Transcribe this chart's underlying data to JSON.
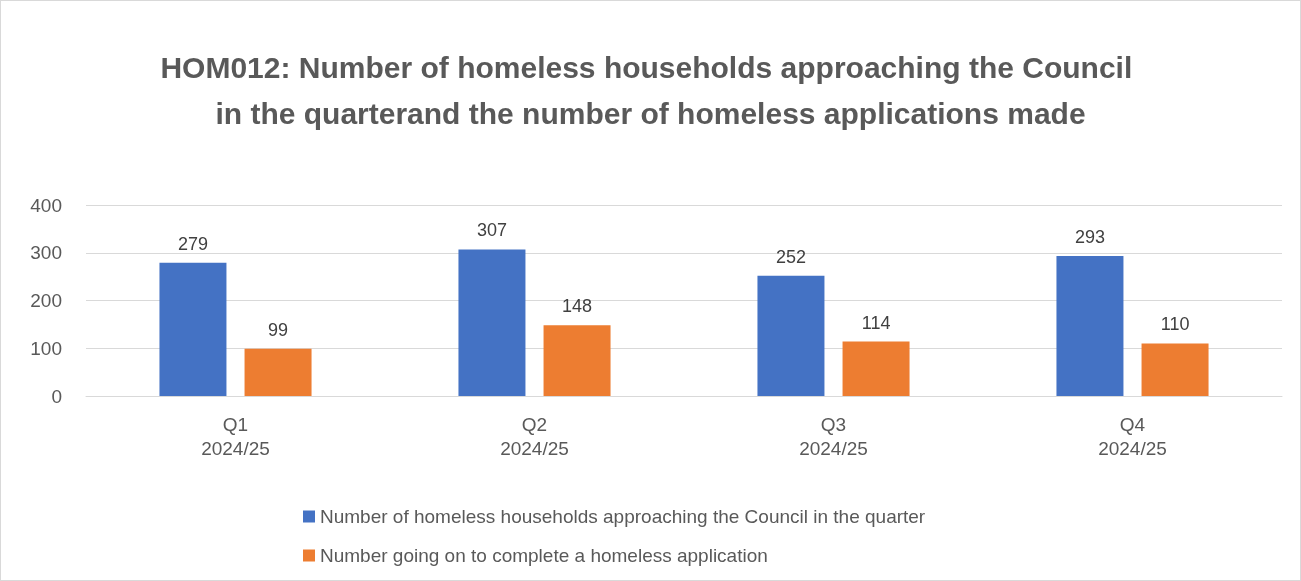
{
  "chart_data": {
    "type": "bar",
    "title": "HOM012: Number of homeless households approaching the Council in the quarterand the number of homeless applications made",
    "categories": [
      "Q1\n2024/25",
      "Q2\n2024/25",
      "Q3\n2024/25",
      "Q4\n2024/25"
    ],
    "series": [
      {
        "name": "Number of homeless households approaching the Council in the quarter",
        "color": "#4472c4",
        "values": [
          279,
          307,
          252,
          293
        ]
      },
      {
        "name": "Number going on to complete a homeless application",
        "color": "#ed7d31",
        "values": [
          99,
          148,
          114,
          110
        ]
      }
    ],
    "ylim": [
      0,
      400
    ],
    "yticks": [
      0,
      100,
      200,
      300,
      400
    ],
    "grid": "y",
    "data_labels": true,
    "legend": "bottom"
  }
}
